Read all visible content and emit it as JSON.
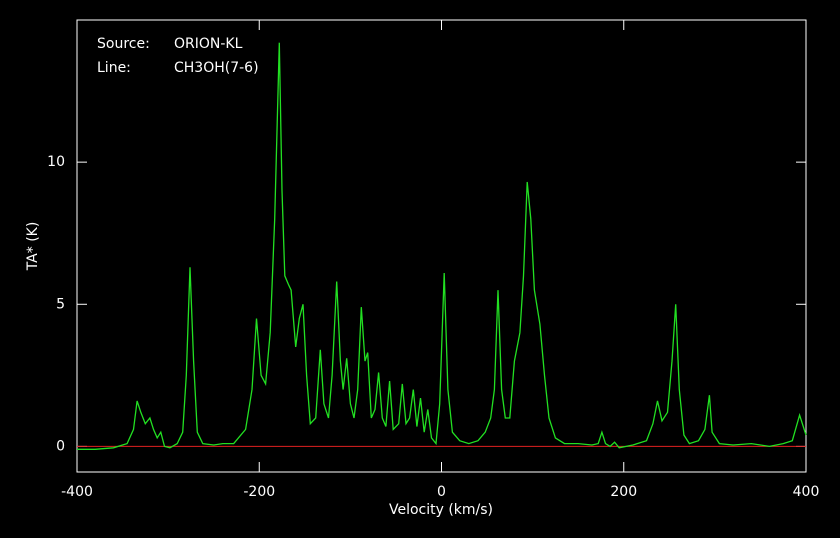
{
  "chart_data": {
    "type": "line",
    "xlabel": "Velocity (km/s)",
    "ylabel": "TA* (K)",
    "annotations": [
      "Source:",
      "ORION-KL",
      "Line:",
      "CH3OH(7-6)"
    ],
    "color": "#22e022",
    "baseline": 0,
    "baseline_color": "#e02020",
    "xlim": [
      -400,
      400
    ],
    "xticks": [
      -400,
      -200,
      0,
      200,
      400
    ],
    "ylim": [
      -0.9,
      15
    ],
    "yticks": [
      0,
      5,
      10
    ],
    "x": [
      -400,
      -380,
      -360,
      -345,
      -338,
      -334,
      -330,
      -325,
      -320,
      -316,
      -312,
      -308,
      -304,
      -298,
      -290,
      -284,
      -280,
      -276,
      -272,
      -268,
      -262,
      -250,
      -240,
      -228,
      -215,
      -208,
      -203,
      -198,
      -193,
      -188,
      -183,
      -178,
      -175,
      -172,
      -168,
      -165,
      -160,
      -156,
      -152,
      -148,
      -144,
      -138,
      -133,
      -129,
      -124,
      -120,
      -115,
      -111,
      -108,
      -104,
      -100,
      -96,
      -92,
      -88,
      -84,
      -81,
      -77,
      -73,
      -69,
      -65,
      -61,
      -57,
      -53,
      -47,
      -43,
      -39,
      -35,
      -31,
      -27,
      -23,
      -19,
      -15,
      -11,
      -6,
      -2,
      3,
      7,
      12,
      20,
      30,
      40,
      48,
      54,
      58,
      62,
      66,
      70,
      75,
      80,
      86,
      90,
      94,
      98,
      102,
      108,
      113,
      118,
      125,
      135,
      150,
      165,
      172,
      176,
      180,
      185,
      190,
      195,
      210,
      225,
      232,
      237,
      242,
      248,
      253,
      257,
      261,
      266,
      272,
      282,
      289,
      294,
      297,
      305,
      320,
      340,
      360,
      375,
      385,
      393,
      398,
      400
    ],
    "values": [
      -0.1,
      -0.1,
      -0.05,
      0.1,
      0.6,
      1.6,
      1.2,
      0.8,
      1.0,
      0.6,
      0.3,
      0.5,
      0.0,
      -0.05,
      0.1,
      0.5,
      2.5,
      6.3,
      3.0,
      0.5,
      0.1,
      0.05,
      0.1,
      0.1,
      0.6,
      2.0,
      4.5,
      2.5,
      2.2,
      4.0,
      8.0,
      14.2,
      9.0,
      6.0,
      5.7,
      5.5,
      3.5,
      4.5,
      5.0,
      2.5,
      0.8,
      1.0,
      3.4,
      1.5,
      1.0,
      2.5,
      5.8,
      3.0,
      2.0,
      3.1,
      1.5,
      1.0,
      2.0,
      4.9,
      3.0,
      3.3,
      1.0,
      1.3,
      2.6,
      1.0,
      0.7,
      2.3,
      0.6,
      0.8,
      2.2,
      0.8,
      1.0,
      2.0,
      0.7,
      1.7,
      0.5,
      1.3,
      0.3,
      0.1,
      1.5,
      6.1,
      2.0,
      0.5,
      0.2,
      0.1,
      0.2,
      0.5,
      1.0,
      2.0,
      5.5,
      2.0,
      1.0,
      1.0,
      3.0,
      4.0,
      6.0,
      9.3,
      8.0,
      5.5,
      4.3,
      2.5,
      1.0,
      0.3,
      0.1,
      0.1,
      0.05,
      0.1,
      0.5,
      0.1,
      0.0,
      0.15,
      -0.05,
      0.05,
      0.2,
      0.8,
      1.6,
      0.9,
      1.2,
      3.0,
      5.0,
      2.0,
      0.4,
      0.1,
      0.2,
      0.6,
      1.8,
      0.5,
      0.1,
      0.05,
      0.1,
      0.0,
      0.1,
      0.2,
      1.1,
      0.6,
      0.4
    ]
  }
}
